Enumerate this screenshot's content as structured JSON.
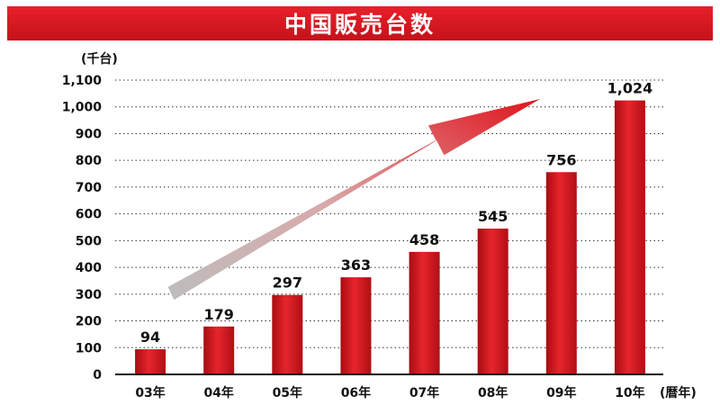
{
  "chart_data": {
    "type": "bar",
    "title": "中国販売台数",
    "unit_label": "(千台)",
    "x_unit_label": "(暦年)",
    "categories": [
      "03年",
      "04年",
      "05年",
      "06年",
      "07年",
      "08年",
      "09年",
      "10年"
    ],
    "values": [
      94,
      179,
      297,
      363,
      458,
      545,
      756,
      1024
    ],
    "value_labels": [
      "94",
      "179",
      "297",
      "363",
      "458",
      "545",
      "756",
      "1,024"
    ],
    "y_ticks": [
      "0",
      "100",
      "200",
      "300",
      "400",
      "500",
      "600",
      "700",
      "800",
      "900",
      "1,000",
      "1,100"
    ],
    "ylim": [
      0,
      1100
    ],
    "grid": true,
    "grid_style": "dotted",
    "bar_color": "#d9141b",
    "banner_color": "#d41820",
    "arrow": "trend-arrow-gray-to-red"
  }
}
